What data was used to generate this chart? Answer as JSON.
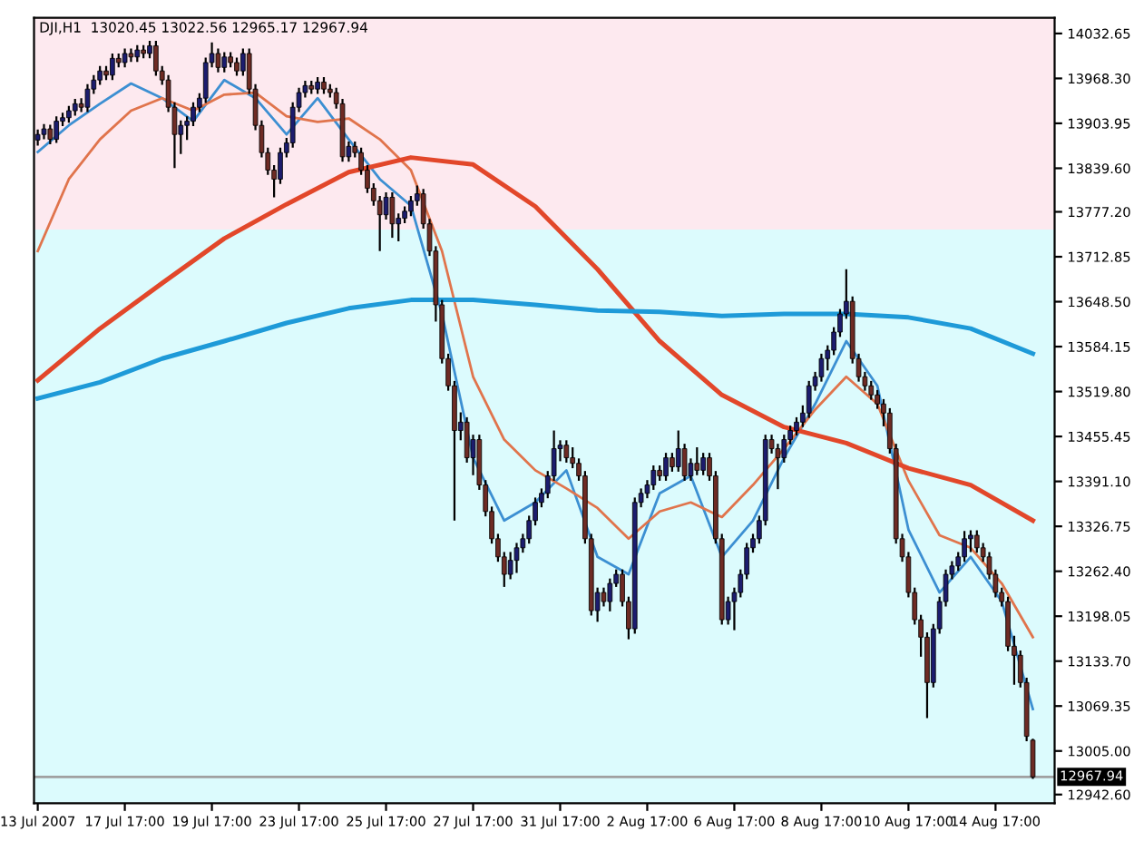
{
  "chart_data": {
    "type": "candlestick",
    "title": "DJI,H1  13020.45 13022.56 12965.17 12967.94",
    "categories": [
      "13 Jul 2007",
      null,
      null,
      null,
      null,
      null,
      null,
      null,
      null,
      null,
      null,
      null,
      null,
      null,
      "17 Jul 17:00",
      null,
      null,
      null,
      null,
      null,
      null,
      null,
      null,
      null,
      null,
      null,
      null,
      null,
      "19 Jul 17:00",
      null,
      null,
      null,
      null,
      null,
      null,
      null,
      null,
      null,
      null,
      null,
      null,
      null,
      "23 Jul 17:00",
      null,
      null,
      null,
      null,
      null,
      null,
      null,
      null,
      null,
      null,
      null,
      null,
      null,
      "25 Jul 17:00",
      null,
      null,
      null,
      null,
      null,
      null,
      null,
      null,
      null,
      null,
      null,
      null,
      null,
      "27 Jul 17:00",
      null,
      null,
      null,
      null,
      null,
      null,
      null,
      null,
      null,
      null,
      null,
      null,
      null,
      "31 Jul 17:00",
      null,
      null,
      null,
      null,
      null,
      null,
      null,
      null,
      null,
      null,
      null,
      null,
      null,
      "2 Aug 17:00",
      null,
      null,
      null,
      null,
      null,
      null,
      null,
      null,
      null,
      null,
      null,
      null,
      null,
      "6 Aug 17:00",
      null,
      null,
      null,
      null,
      null,
      null,
      null,
      null,
      null,
      null,
      null,
      null,
      null,
      "8 Aug 17:00",
      null,
      null,
      null,
      null,
      null,
      null,
      null,
      null,
      null,
      null,
      null,
      null,
      null,
      "10 Aug 17:00",
      null,
      null,
      null,
      null,
      null,
      null,
      null,
      null,
      null,
      null,
      null,
      null,
      null,
      "14 Aug 17:00",
      null,
      null,
      null,
      null,
      null,
      null
    ],
    "colors": [
      "#1c1c6e",
      "#1c1c6e",
      "#6e2b24",
      "#1c1c6e",
      "#1c1c6e",
      "#1c1c6e",
      "#1c1c6e",
      "#6e2b24",
      "#1c1c6e",
      "#1c1c6e",
      "#1c1c6e",
      "#6e2b24",
      "#1c1c6e",
      "#6e2b24",
      "#1c1c6e",
      "#6e2b24",
      "#1c1c6e",
      "#6e2b24",
      "#1c1c6e",
      "#6e2b24",
      "#6e2b24",
      "#6e2b24",
      "#6e2b24",
      "#1c1c6e",
      "#1c1c6e",
      "#1c1c6e",
      "#1c1c6e",
      "#1c1c6e",
      "#1c1c6e",
      "#6e2b24",
      "#1c1c6e",
      "#6e2b24",
      "#6e2b24",
      "#1c1c6e",
      "#6e2b24",
      "#6e2b24",
      "#6e2b24",
      "#6e2b24",
      "#6e2b24",
      "#1c1c6e",
      "#1c1c6e",
      "#1c1c6e",
      "#1c1c6e",
      "#1c1c6e",
      "#6e2b24",
      "#1c1c6e",
      "#6e2b24",
      "#6e2b24",
      "#6e2b24",
      "#6e2b24",
      "#1c1c6e",
      "#6e2b24",
      "#6e2b24",
      "#6e2b24",
      "#6e2b24",
      "#6e2b24",
      "#1c1c6e",
      "#6e2b24",
      "#1c1c6e",
      "#1c1c6e",
      "#1c1c6e",
      "#1c1c6e",
      "#6e2b24",
      "#6e2b24",
      "#6e2b24",
      "#6e2b24",
      "#6e2b24",
      "#6e2b24",
      "#1c1c6e",
      "#6e2b24",
      "#1c1c6e",
      "#6e2b24",
      "#6e2b24",
      "#6e2b24",
      "#6e2b24",
      "#6e2b24",
      "#1c1c6e",
      "#1c1c6e",
      "#1c1c6e",
      "#1c1c6e",
      "#1c1c6e",
      "#1c1c6e",
      "#1c1c6e",
      "#1c1c6e",
      "#1c1c6e",
      "#6e2b24",
      "#6e2b24",
      "#6e2b24",
      "#6e2b24",
      "#6e2b24",
      "#1c1c6e",
      "#6e2b24",
      "#1c1c6e",
      "#1c1c6e",
      "#6e2b24",
      "#6e2b24",
      "#1c1c6e",
      "#1c1c6e",
      "#1c1c6e",
      "#1c1c6e",
      "#6e2b24",
      "#1c1c6e",
      "#6e2b24",
      "#1c1c6e",
      "#6e2b24",
      "#1c1c6e",
      "#6e2b24",
      "#1c1c6e",
      "#6e2b24",
      "#6e2b24",
      "#6e2b24",
      "#1c1c6e",
      "#1c1c6e",
      "#1c1c6e",
      "#1c1c6e",
      "#1c1c6e",
      "#1c1c6e",
      "#1c1c6e",
      "#6e2b24",
      "#6e2b24",
      "#1c1c6e",
      "#1c1c6e",
      "#1c1c6e",
      "#1c1c6e",
      "#1c1c6e",
      "#1c1c6e",
      "#1c1c6e",
      "#1c1c6e",
      "#1c1c6e",
      "#1c1c6e",
      "#1c1c6e",
      "#6e2b24",
      "#6e2b24",
      "#6e2b24",
      "#6e2b24",
      "#6e2b24",
      "#6e2b24",
      "#6e2b24",
      "#6e2b24",
      "#6e2b24",
      "#6e2b24",
      "#6e2b24",
      "#6e2b24",
      "#6e2b24",
      "#1c1c6e",
      "#1c1c6e",
      "#1c1c6e",
      "#1c1c6e",
      "#1c1c6e",
      "#1c1c6e",
      "#1c1c6e",
      "#6e2b24",
      "#6e2b24",
      "#6e2b24",
      "#6e2b24",
      "#6e2b24",
      "#6e2b24",
      "#6e2b24",
      "#6e2b24",
      "#6e2b24",
      "#6e2b24"
    ],
    "ohlc": [
      [
        13880,
        13895,
        13872,
        13888
      ],
      [
        13888,
        13903,
        13881,
        13896
      ],
      [
        13896,
        13902,
        13874,
        13881
      ],
      [
        13881,
        13914,
        13876,
        13907
      ],
      [
        13907,
        13919,
        13900,
        13912
      ],
      [
        13912,
        13929,
        13905,
        13922
      ],
      [
        13922,
        13939,
        13915,
        13932
      ],
      [
        13932,
        13940,
        13920,
        13927
      ],
      [
        13927,
        13960,
        13920,
        13953
      ],
      [
        13953,
        13973,
        13946,
        13966
      ],
      [
        13966,
        13986,
        13959,
        13979
      ],
      [
        13979,
        13986,
        13966,
        13973
      ],
      [
        13973,
        14004,
        13966,
        13997
      ],
      [
        13997,
        14004,
        13984,
        13991
      ],
      [
        13991,
        14011,
        13984,
        14004
      ],
      [
        14004,
        14011,
        13992,
        13999
      ],
      [
        13999,
        14016,
        13992,
        14009
      ],
      [
        14009,
        14016,
        13997,
        14004
      ],
      [
        14004,
        14022,
        13997,
        14015
      ],
      [
        14015,
        14022,
        13972,
        13979
      ],
      [
        13979,
        13986,
        13959,
        13966
      ],
      [
        13966,
        13973,
        13920,
        13927
      ],
      [
        13927,
        13934,
        13840,
        13888
      ],
      [
        13888,
        13908,
        13860,
        13901
      ],
      [
        13901,
        13914,
        13880,
        13907
      ],
      [
        13907,
        13934,
        13900,
        13927
      ],
      [
        13927,
        13947,
        13920,
        13940
      ],
      [
        13940,
        13998,
        13933,
        13991
      ],
      [
        13991,
        14020,
        13984,
        14004
      ],
      [
        14004,
        14011,
        13977,
        13984
      ],
      [
        13984,
        14006,
        13977,
        13999
      ],
      [
        13999,
        14006,
        13984,
        13991
      ],
      [
        13991,
        13998,
        13972,
        13979
      ],
      [
        13979,
        14011,
        13972,
        14004
      ],
      [
        14004,
        14011,
        13946,
        13953
      ],
      [
        13953,
        13960,
        13894,
        13901
      ],
      [
        13901,
        13908,
        13855,
        13862
      ],
      [
        13862,
        13869,
        13830,
        13837
      ],
      [
        13837,
        13844,
        13798,
        13824
      ],
      [
        13824,
        13869,
        13817,
        13862
      ],
      [
        13862,
        13883,
        13855,
        13876
      ],
      [
        13876,
        13934,
        13869,
        13927
      ],
      [
        13927,
        13955,
        13920,
        13948
      ],
      [
        13948,
        13965,
        13941,
        13958
      ],
      [
        13958,
        13965,
        13946,
        13953
      ],
      [
        13953,
        13970,
        13946,
        13963
      ],
      [
        13963,
        13970,
        13946,
        13953
      ],
      [
        13953,
        13960,
        13941,
        13948
      ],
      [
        13948,
        13955,
        13925,
        13932
      ],
      [
        13932,
        13939,
        13849,
        13856
      ],
      [
        13856,
        13878,
        13849,
        13871
      ],
      [
        13871,
        13878,
        13855,
        13862
      ],
      [
        13862,
        13869,
        13830,
        13837
      ],
      [
        13837,
        13844,
        13804,
        13811
      ],
      [
        13811,
        13818,
        13786,
        13793
      ],
      [
        13793,
        13800,
        13721,
        13773
      ],
      [
        13773,
        13805,
        13766,
        13798
      ],
      [
        13798,
        13805,
        13740,
        13760
      ],
      [
        13760,
        13775,
        13735,
        13768
      ],
      [
        13768,
        13785,
        13761,
        13778
      ],
      [
        13778,
        13800,
        13771,
        13793
      ],
      [
        13793,
        13815,
        13786,
        13803
      ],
      [
        13803,
        13810,
        13753,
        13760
      ],
      [
        13760,
        13767,
        13714,
        13721
      ],
      [
        13721,
        13728,
        13620,
        13644
      ],
      [
        13644,
        13651,
        13560,
        13567
      ],
      [
        13567,
        13574,
        13521,
        13528
      ],
      [
        13528,
        13535,
        13335,
        13464
      ],
      [
        13464,
        13490,
        13450,
        13476
      ],
      [
        13476,
        13483,
        13418,
        13425
      ],
      [
        13425,
        13458,
        13400,
        13451
      ],
      [
        13451,
        13458,
        13379,
        13386
      ],
      [
        13386,
        13393,
        13341,
        13348
      ],
      [
        13348,
        13355,
        13302,
        13309
      ],
      [
        13309,
        13316,
        13276,
        13283
      ],
      [
        13283,
        13290,
        13240,
        13258
      ],
      [
        13258,
        13290,
        13251,
        13278
      ],
      [
        13278,
        13303,
        13260,
        13296
      ],
      [
        13296,
        13316,
        13289,
        13309
      ],
      [
        13309,
        13342,
        13302,
        13335
      ],
      [
        13335,
        13368,
        13328,
        13361
      ],
      [
        13361,
        13381,
        13354,
        13374
      ],
      [
        13374,
        13406,
        13367,
        13399
      ],
      [
        13399,
        13464,
        13392,
        13438
      ],
      [
        13438,
        13450,
        13420,
        13443
      ],
      [
        13443,
        13450,
        13418,
        13425
      ],
      [
        13425,
        13440,
        13410,
        13417
      ],
      [
        13417,
        13424,
        13392,
        13399
      ],
      [
        13399,
        13406,
        13302,
        13309
      ],
      [
        13309,
        13316,
        13199,
        13206
      ],
      [
        13206,
        13239,
        13190,
        13232
      ],
      [
        13232,
        13239,
        13212,
        13219
      ],
      [
        13219,
        13252,
        13205,
        13245
      ],
      [
        13245,
        13265,
        13240,
        13258
      ],
      [
        13258,
        13265,
        13212,
        13219
      ],
      [
        13219,
        13226,
        13165,
        13180
      ],
      [
        13180,
        13368,
        13173,
        13361
      ],
      [
        13361,
        13381,
        13354,
        13374
      ],
      [
        13374,
        13393,
        13367,
        13386
      ],
      [
        13386,
        13414,
        13379,
        13407
      ],
      [
        13407,
        13414,
        13392,
        13399
      ],
      [
        13399,
        13432,
        13392,
        13425
      ],
      [
        13425,
        13432,
        13405,
        13412
      ],
      [
        13412,
        13464,
        13405,
        13438
      ],
      [
        13438,
        13445,
        13392,
        13399
      ],
      [
        13399,
        13424,
        13392,
        13417
      ],
      [
        13417,
        13440,
        13400,
        13407
      ],
      [
        13407,
        13432,
        13400,
        13425
      ],
      [
        13425,
        13432,
        13392,
        13399
      ],
      [
        13399,
        13406,
        13302,
        13309
      ],
      [
        13309,
        13316,
        13186,
        13193
      ],
      [
        13193,
        13226,
        13186,
        13219
      ],
      [
        13219,
        13239,
        13178,
        13232
      ],
      [
        13232,
        13265,
        13225,
        13258
      ],
      [
        13258,
        13303,
        13251,
        13296
      ],
      [
        13296,
        13316,
        13289,
        13309
      ],
      [
        13309,
        13342,
        13302,
        13335
      ],
      [
        13335,
        13458,
        13328,
        13451
      ],
      [
        13451,
        13458,
        13431,
        13438
      ],
      [
        13438,
        13445,
        13380,
        13425
      ],
      [
        13425,
        13458,
        13418,
        13451
      ],
      [
        13451,
        13471,
        13444,
        13464
      ],
      [
        13464,
        13483,
        13457,
        13476
      ],
      [
        13476,
        13500,
        13469,
        13489
      ],
      [
        13489,
        13535,
        13482,
        13528
      ],
      [
        13528,
        13548,
        13521,
        13541
      ],
      [
        13541,
        13574,
        13534,
        13567
      ],
      [
        13567,
        13586,
        13550,
        13579
      ],
      [
        13579,
        13612,
        13572,
        13605
      ],
      [
        13605,
        13638,
        13598,
        13631
      ],
      [
        13631,
        13695,
        13624,
        13649
      ],
      [
        13649,
        13656,
        13560,
        13567
      ],
      [
        13567,
        13574,
        13534,
        13541
      ],
      [
        13541,
        13548,
        13521,
        13528
      ],
      [
        13528,
        13535,
        13508,
        13515
      ],
      [
        13515,
        13522,
        13495,
        13502
      ],
      [
        13502,
        13509,
        13470,
        13489
      ],
      [
        13489,
        13496,
        13431,
        13438
      ],
      [
        13438,
        13445,
        13302,
        13309
      ],
      [
        13309,
        13316,
        13276,
        13283
      ],
      [
        13283,
        13290,
        13225,
        13232
      ],
      [
        13232,
        13239,
        13186,
        13193
      ],
      [
        13193,
        13200,
        13140,
        13168
      ],
      [
        13168,
        13175,
        13052,
        13103
      ],
      [
        13103,
        13187,
        13096,
        13180
      ],
      [
        13180,
        13226,
        13173,
        13219
      ],
      [
        13219,
        13265,
        13212,
        13258
      ],
      [
        13258,
        13277,
        13251,
        13270
      ],
      [
        13270,
        13290,
        13263,
        13283
      ],
      [
        13283,
        13320,
        13276,
        13309
      ],
      [
        13309,
        13321,
        13290,
        13314
      ],
      [
        13314,
        13321,
        13289,
        13296
      ],
      [
        13296,
        13303,
        13276,
        13283
      ],
      [
        13283,
        13290,
        13251,
        13258
      ],
      [
        13258,
        13265,
        13225,
        13232
      ],
      [
        13232,
        13239,
        13212,
        13219
      ],
      [
        13219,
        13226,
        13148,
        13155
      ],
      [
        13155,
        13170,
        13100,
        13142
      ],
      [
        13142,
        13149,
        13096,
        13103
      ],
      [
        13103,
        13110,
        13019,
        13026
      ],
      [
        13020.45,
        13022.56,
        12965.17,
        12967.94
      ]
    ],
    "series": [
      {
        "type": "line",
        "color": "#3c8fd2",
        "values": [
          13863,
          null,
          null,
          null,
          null,
          13901,
          null,
          null,
          null,
          null,
          13932,
          null,
          null,
          null,
          null,
          13961,
          null,
          null,
          null,
          null,
          13940,
          null,
          null,
          null,
          null,
          13907,
          null,
          null,
          null,
          null,
          13966,
          null,
          null,
          null,
          null,
          13940,
          null,
          null,
          null,
          null,
          13888,
          null,
          null,
          null,
          null,
          13940,
          null,
          null,
          null,
          null,
          13881,
          null,
          null,
          null,
          null,
          13824,
          null,
          null,
          null,
          null,
          13786,
          null,
          null,
          null,
          null,
          13631,
          null,
          null,
          null,
          null,
          13425,
          null,
          null,
          null,
          null,
          13335,
          null,
          null,
          null,
          null,
          13361,
          null,
          null,
          null,
          null,
          13407,
          null,
          null,
          null,
          null,
          13283,
          null,
          null,
          null,
          null,
          13258,
          null,
          null,
          null,
          null,
          13374,
          null,
          null,
          null,
          null,
          13399,
          null,
          null,
          null,
          null,
          13283,
          null,
          null,
          null,
          null,
          13335,
          null,
          null,
          null,
          null,
          13425,
          null,
          null,
          null,
          null,
          13502,
          null,
          null,
          null,
          null,
          13592,
          null,
          null,
          null,
          null,
          13528,
          null,
          null,
          null,
          null,
          13322,
          null,
          null,
          null,
          null,
          13232,
          null,
          null,
          null,
          null,
          13283,
          null,
          null,
          null,
          null,
          13219,
          null,
          null,
          null,
          null,
          13065
        ]
      },
      {
        "type": "line",
        "color": "#e0744c",
        "values": [
          13721,
          null,
          null,
          null,
          null,
          13824,
          null,
          null,
          null,
          null,
          13881,
          null,
          null,
          null,
          null,
          13922,
          null,
          null,
          null,
          null,
          13940,
          null,
          null,
          null,
          null,
          13922,
          null,
          null,
          null,
          null,
          13945,
          null,
          null,
          null,
          null,
          13948,
          null,
          null,
          null,
          null,
          13914,
          null,
          null,
          null,
          null,
          13906,
          null,
          null,
          null,
          null,
          13911,
          null,
          null,
          null,
          null,
          13881,
          null,
          null,
          null,
          null,
          13837,
          null,
          null,
          null,
          null,
          13721,
          null,
          null,
          null,
          null,
          13541,
          null,
          null,
          null,
          null,
          13451,
          null,
          null,
          null,
          null,
          13407,
          null,
          null,
          null,
          null,
          13381,
          null,
          null,
          null,
          null,
          13353,
          null,
          null,
          null,
          null,
          13309,
          null,
          null,
          null,
          null,
          13348,
          null,
          null,
          null,
          null,
          13361,
          null,
          null,
          null,
          null,
          13340,
          null,
          null,
          null,
          null,
          13386,
          null,
          null,
          null,
          null,
          13438,
          null,
          null,
          null,
          null,
          13494,
          null,
          null,
          null,
          null,
          13541,
          null,
          null,
          null,
          null,
          13502,
          null,
          null,
          null,
          null,
          13392,
          null,
          null,
          null,
          null,
          13314,
          null,
          null,
          null,
          null,
          13296,
          null,
          null,
          null,
          null,
          13245,
          null,
          null,
          null,
          null,
          13168
        ]
      },
      {
        "type": "line",
        "color": "#e2472a",
        "values": [
          13536,
          null,
          null,
          null,
          null,
          null,
          null,
          null,
          null,
          null,
          13610,
          null,
          null,
          null,
          null,
          null,
          null,
          null,
          null,
          null,
          13675,
          null,
          null,
          null,
          null,
          null,
          null,
          null,
          null,
          null,
          13739,
          null,
          null,
          null,
          null,
          null,
          null,
          null,
          null,
          null,
          13788,
          null,
          null,
          null,
          null,
          null,
          null,
          null,
          null,
          null,
          13834,
          null,
          null,
          null,
          null,
          null,
          null,
          null,
          null,
          null,
          13855,
          null,
          null,
          null,
          null,
          null,
          null,
          null,
          null,
          null,
          13845,
          null,
          null,
          null,
          null,
          null,
          null,
          null,
          null,
          null,
          13785,
          null,
          null,
          null,
          null,
          null,
          null,
          null,
          null,
          null,
          13695,
          null,
          null,
          null,
          null,
          null,
          null,
          null,
          null,
          null,
          13592,
          null,
          null,
          null,
          null,
          null,
          null,
          null,
          null,
          null,
          13515,
          null,
          null,
          null,
          null,
          null,
          null,
          null,
          null,
          null,
          13469,
          null,
          null,
          null,
          null,
          null,
          null,
          null,
          null,
          null,
          13446,
          null,
          null,
          null,
          null,
          null,
          null,
          null,
          null,
          null,
          13410,
          null,
          null,
          null,
          null,
          null,
          null,
          null,
          null,
          null,
          13386,
          null,
          null,
          null,
          null,
          null,
          null,
          null,
          null,
          null,
          13335
        ]
      },
      {
        "type": "line",
        "color": "#1e9ad8",
        "values": [
          13510,
          null,
          null,
          null,
          null,
          null,
          null,
          null,
          null,
          null,
          13533,
          null,
          null,
          null,
          null,
          null,
          null,
          null,
          null,
          null,
          13567,
          null,
          null,
          null,
          null,
          null,
          null,
          null,
          null,
          null,
          13592,
          null,
          null,
          null,
          null,
          null,
          null,
          null,
          null,
          null,
          13618,
          null,
          null,
          null,
          null,
          null,
          null,
          null,
          null,
          null,
          13639,
          null,
          null,
          null,
          null,
          null,
          null,
          null,
          null,
          null,
          13651,
          null,
          null,
          null,
          null,
          null,
          null,
          null,
          null,
          null,
          13651,
          null,
          null,
          null,
          null,
          null,
          null,
          null,
          null,
          null,
          13644,
          null,
          null,
          null,
          null,
          null,
          null,
          null,
          null,
          null,
          13636,
          null,
          null,
          null,
          null,
          null,
          null,
          null,
          null,
          null,
          13634,
          null,
          null,
          null,
          null,
          null,
          null,
          null,
          null,
          null,
          13628,
          null,
          null,
          null,
          null,
          null,
          null,
          null,
          null,
          null,
          13631,
          null,
          null,
          null,
          null,
          null,
          null,
          null,
          null,
          null,
          13631,
          null,
          null,
          null,
          null,
          null,
          null,
          null,
          null,
          null,
          13626,
          null,
          null,
          null,
          null,
          null,
          null,
          null,
          null,
          null,
          13610,
          null,
          null,
          null,
          null,
          null,
          null,
          null,
          null,
          null,
          13574
        ]
      }
    ],
    "ylim": [
      12930,
      14055
    ],
    "yticks": [
      {
        "value": 14032.65,
        "label": "14032.65"
      },
      {
        "value": 13968.3,
        "label": "13968.30"
      },
      {
        "value": 13903.95,
        "label": "13903.95"
      },
      {
        "value": 13839.6,
        "label": "13839.60"
      },
      {
        "value": 13777.2,
        "label": "13777.20"
      },
      {
        "value": 13712.85,
        "label": "13712.85"
      },
      {
        "value": 13648.5,
        "label": "13648.50"
      },
      {
        "value": 13584.15,
        "label": "13584.15"
      },
      {
        "value": 13519.8,
        "label": "13519.80"
      },
      {
        "value": 13455.45,
        "label": "13455.45"
      },
      {
        "value": 13391.1,
        "label": "13391.10"
      },
      {
        "value": 13326.75,
        "label": "13326.75"
      },
      {
        "value": 13262.4,
        "label": "13262.40"
      },
      {
        "value": 13198.05,
        "label": "13198.05"
      },
      {
        "value": 13133.7,
        "label": "13133.70"
      },
      {
        "value": 13069.35,
        "label": "13069.35"
      },
      {
        "value": 13005.0,
        "label": "13005.00"
      },
      {
        "value": 12942.6,
        "label": "12942.60"
      }
    ],
    "bands": [
      {
        "axis": "y",
        "from": 13752,
        "to": 14055,
        "color": "#fde9ef"
      },
      {
        "axis": "y",
        "from": 12930,
        "to": 13752,
        "color": "#dcfbfd"
      }
    ],
    "ref_lines": [
      {
        "axis": "y",
        "value": 12967.94,
        "label": "12967.94",
        "color": "#a0a0a0"
      }
    ],
    "grid": false,
    "legend": false
  }
}
